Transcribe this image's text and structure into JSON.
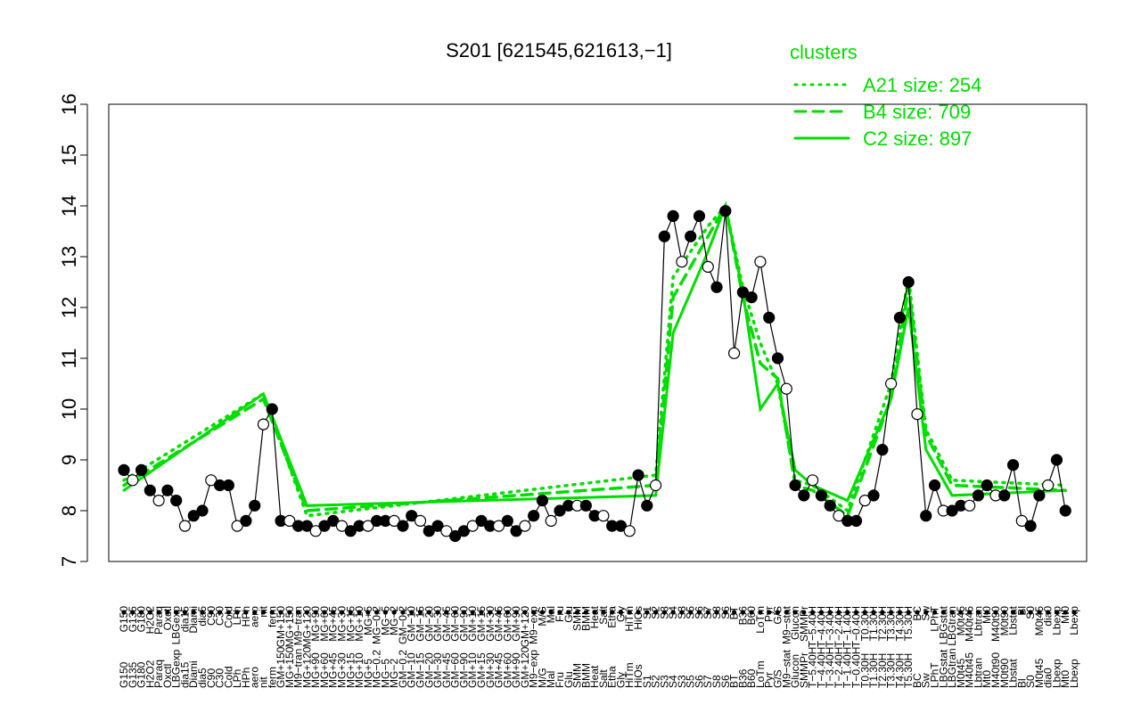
{
  "chart_data": {
    "type": "line",
    "title": "S201 [621545,621613,−1]",
    "ylim": [
      7,
      16
    ],
    "yticks": [
      7,
      8,
      9,
      10,
      11,
      12,
      13,
      14,
      15,
      16
    ],
    "legend": {
      "title": "clusters",
      "placement": "top-right",
      "entries": [
        {
          "label": "A21 size: 254",
          "style": "dotted"
        },
        {
          "label": "B4 size: 709",
          "style": "dashed"
        },
        {
          "label": "C2 size: 897",
          "style": "solid"
        }
      ]
    },
    "colors": {
      "line": "#00dd00",
      "series": "#000000",
      "background": "#ffffff"
    },
    "x_labels": [
      "G150",
      "G135",
      "G180",
      "H2O2",
      "Paraq",
      "Oxctl",
      "LBGexp",
      "dia15",
      "Diami",
      "dia5",
      "C90",
      "C30",
      "Cold",
      "LPh",
      "HPh",
      "aero",
      "nit",
      "ferm",
      "GM+150",
      "MG+150",
      "M9−tran",
      "MG+120",
      "MG+90",
      "MG+60",
      "MG+45",
      "MG+30",
      "MG+15",
      "MG+10",
      "MG+5",
      "MG−0.2",
      "MG−5",
      "MG−2",
      "GM−0.2",
      "GM−10",
      "GM−15",
      "GM−20",
      "GM−30",
      "GM−45",
      "GM−60",
      "GM−90",
      "GM+10",
      "GM+15",
      "GM+30",
      "GM+45",
      "GM+60",
      "GM+90",
      "GM+120",
      "M9−exp",
      "M/G",
      "Mal",
      "Fru",
      "Glu",
      "SMM",
      "BMM",
      "Heat",
      "Salt",
      "Etha",
      "Gly",
      "HiTm",
      "HiOs",
      "S1",
      "S2",
      "S3",
      "S4",
      "S3",
      "S5",
      "S6",
      "S7",
      "S8",
      "S6",
      "BT",
      "B36",
      "B60",
      "LoTm",
      "Pyr",
      "G/S",
      "M9−stat",
      "Glucon",
      "SMMPr",
      "T−5.40H",
      "T−4.40H",
      "T−3.40H",
      "T−2.40H",
      "T−1.40H",
      "T−0.40H",
      "T0.30H",
      "T1.30H",
      "T2.30H",
      "T3.30H",
      "T4.30H",
      "T5.30H",
      "BC",
      "Sw",
      "LPhT",
      "LBGstat",
      "LBGtran",
      "M0t45",
      "M40t45",
      "Lbtran",
      "Mt0",
      "M40t90",
      "M0t90",
      "Lbstat",
      "Bl",
      "S0",
      "M0t45",
      "dia0",
      "Lbexp",
      "Mt0",
      "Lbexp"
    ],
    "series": [
      {
        "name": "",
        "x": [
          1,
          2,
          3,
          4,
          5,
          6,
          7,
          8,
          9,
          10,
          11,
          12,
          13,
          14,
          15,
          16,
          17,
          18,
          19,
          20,
          21,
          22,
          23,
          24,
          25,
          26,
          27,
          28,
          29,
          30,
          31,
          32,
          33,
          34,
          35,
          36,
          37,
          38,
          39,
          40,
          41,
          42,
          43,
          44,
          45,
          46,
          47,
          48,
          49,
          50,
          51,
          52,
          53,
          54,
          55,
          56,
          57,
          58,
          59,
          60,
          61,
          62,
          63,
          64,
          65,
          66,
          67,
          68,
          69,
          70,
          71,
          72,
          73,
          74,
          75,
          76,
          77,
          78,
          79,
          80,
          81,
          82,
          83,
          84,
          85,
          86,
          87,
          88,
          89,
          90,
          91,
          92,
          93,
          94,
          95,
          96,
          97,
          98,
          99,
          100,
          101,
          102,
          103,
          104,
          105,
          106,
          107,
          108,
          109
        ],
        "y": [
          8.8,
          8.6,
          8.8,
          8.4,
          8.2,
          8.4,
          8.2,
          7.7,
          7.9,
          8.0,
          8.6,
          8.5,
          8.5,
          7.7,
          7.8,
          8.1,
          9.7,
          10.0,
          7.8,
          7.8,
          7.7,
          7.7,
          7.6,
          7.7,
          7.8,
          7.7,
          7.6,
          7.7,
          7.7,
          7.8,
          7.8,
          7.8,
          7.7,
          7.9,
          7.8,
          7.6,
          7.7,
          7.6,
          7.5,
          7.6,
          7.7,
          7.8,
          7.7,
          7.7,
          7.8,
          7.6,
          7.7,
          7.9,
          8.2,
          7.8,
          8.0,
          8.1,
          8.1,
          8.1,
          7.9,
          7.9,
          7.7,
          7.7,
          7.6,
          8.7,
          8.1,
          8.5,
          13.4,
          13.8,
          12.9,
          13.4,
          13.8,
          12.8,
          12.4,
          13.9,
          11.1,
          12.3,
          12.2,
          12.9,
          11.8,
          11.0,
          10.4,
          8.5,
          8.3,
          8.6,
          8.3,
          8.1,
          7.9,
          7.8,
          7.8,
          8.2,
          8.3,
          9.2,
          10.5,
          11.8,
          12.5,
          9.9,
          7.9,
          8.5,
          8.0,
          8.0,
          8.1,
          8.1,
          8.3,
          8.5,
          8.3,
          8.3,
          8.9,
          7.8,
          7.7,
          8.3,
          8.5,
          9.0,
          8.0
        ]
      },
      {
        "name": "A21 size: 254",
        "x": [
          1,
          17,
          22,
          62,
          64,
          68,
          70,
          72,
          74,
          76,
          78,
          80,
          84,
          89,
          91,
          93,
          96,
          109
        ],
        "y": [
          8.6,
          10.3,
          7.9,
          8.7,
          12.6,
          13.6,
          14.0,
          12.4,
          11.3,
          10.5,
          8.6,
          8.5,
          8.0,
          10.5,
          12.6,
          9.6,
          8.6,
          8.5
        ]
      },
      {
        "name": "B4 size: 709",
        "x": [
          1,
          17,
          22,
          62,
          64,
          68,
          70,
          72,
          74,
          76,
          78,
          80,
          84,
          89,
          91,
          93,
          96,
          109
        ],
        "y": [
          8.5,
          10.2,
          8.0,
          8.5,
          12.2,
          13.4,
          14.0,
          12.2,
          10.9,
          10.6,
          8.5,
          8.4,
          7.9,
          10.2,
          12.4,
          9.5,
          8.5,
          8.4
        ]
      },
      {
        "name": "C2 size: 897",
        "x": [
          1,
          17,
          22,
          62,
          64,
          68,
          70,
          72,
          74,
          76,
          78,
          80,
          84,
          89,
          91,
          93,
          96,
          109
        ],
        "y": [
          8.4,
          10.3,
          8.1,
          8.3,
          11.5,
          13.1,
          14.0,
          12.3,
          10.0,
          10.5,
          8.8,
          8.5,
          8.2,
          10.2,
          12.0,
          9.2,
          8.3,
          8.4
        ]
      }
    ]
  }
}
